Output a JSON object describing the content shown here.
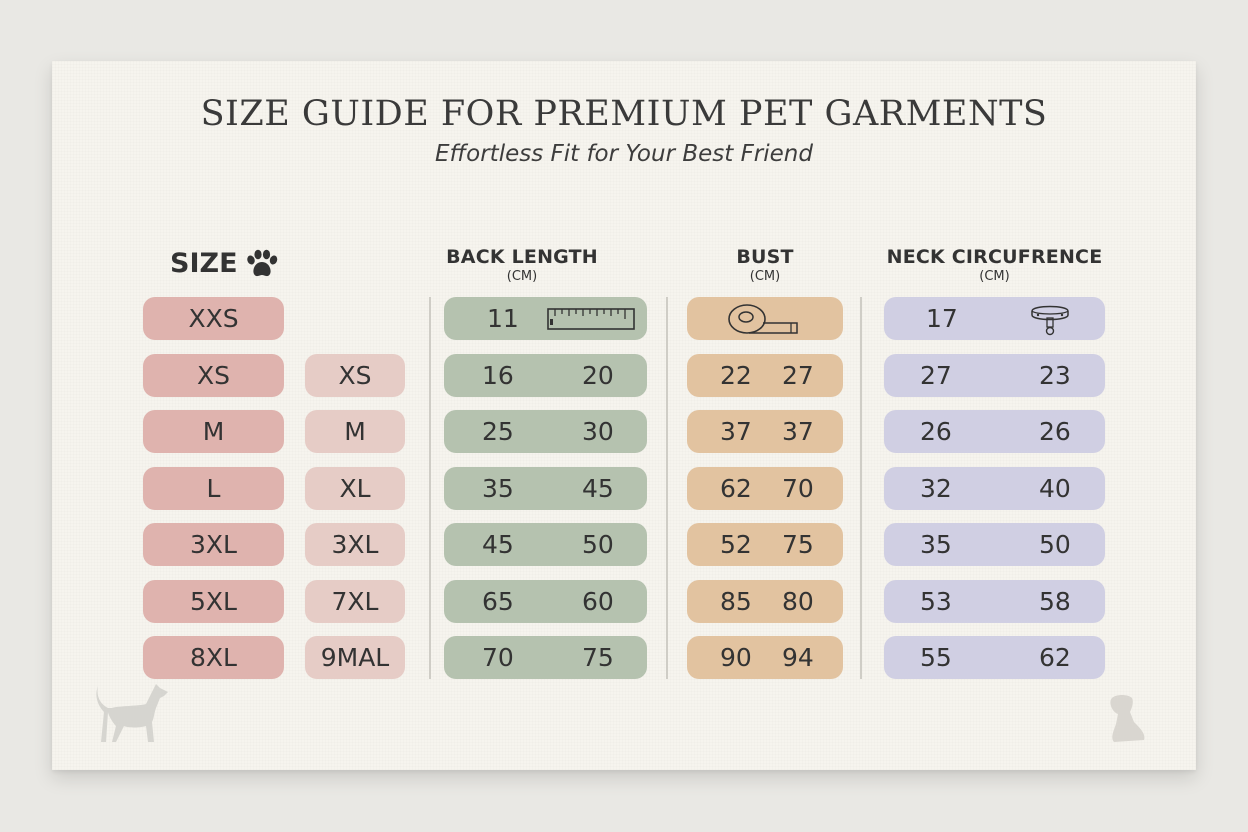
{
  "header": {
    "title": "SIZE GUIDE FOR PREMIUM PET GARMENTS",
    "subtitle": "Effortless Fit for Your Best Friend"
  },
  "columns": {
    "size": {
      "label": "SIZE",
      "icon": "paw-icon"
    },
    "back_length": {
      "label": "BACK LENGTH",
      "unit": "(CM)",
      "icon": "ruler-icon"
    },
    "bust": {
      "label": "BUST",
      "unit": "(CM)",
      "icon": "tape-measure-icon"
    },
    "neck": {
      "label": "NECK CIRCUFRENCE",
      "unit": "(CM)",
      "icon": "collar-icon"
    }
  },
  "colors": {
    "size_primary": "#dfb3ae",
    "size_secondary": "#e6ccc6",
    "back_length": "#b5c2af",
    "bust": "#e2c3a0",
    "neck": "#d0cfe3"
  },
  "rows": [
    {
      "size": "XXS",
      "size_alt": "",
      "back": [
        "11",
        ""
      ],
      "bust": [
        "",
        ""
      ],
      "neck": [
        "17",
        ""
      ]
    },
    {
      "size": "XS",
      "size_alt": "XS",
      "back": [
        "16",
        "20"
      ],
      "bust": [
        "22",
        "27"
      ],
      "neck": [
        "27",
        "23"
      ]
    },
    {
      "size": "M",
      "size_alt": "M",
      "back": [
        "25",
        "30"
      ],
      "bust": [
        "37",
        "37"
      ],
      "neck": [
        "26",
        "26"
      ]
    },
    {
      "size": "L",
      "size_alt": "XL",
      "back": [
        "35",
        "45"
      ],
      "bust": [
        "62",
        "70"
      ],
      "neck": [
        "32",
        "40"
      ]
    },
    {
      "size": "3XL",
      "size_alt": "3XL",
      "back": [
        "45",
        "50"
      ],
      "bust": [
        "52",
        "75"
      ],
      "neck": [
        "35",
        "50"
      ]
    },
    {
      "size": "5XL",
      "size_alt": "7XL",
      "back": [
        "65",
        "60"
      ],
      "bust": [
        "85",
        "80"
      ],
      "neck": [
        "53",
        "58"
      ]
    },
    {
      "size": "8XL",
      "size_alt": "9MAL",
      "back": [
        "70",
        "75"
      ],
      "bust": [
        "90",
        "94"
      ],
      "neck": [
        "55",
        "62"
      ]
    }
  ],
  "decorations": [
    "dog-silhouette-icon",
    "puppy-silhouette-icon"
  ]
}
